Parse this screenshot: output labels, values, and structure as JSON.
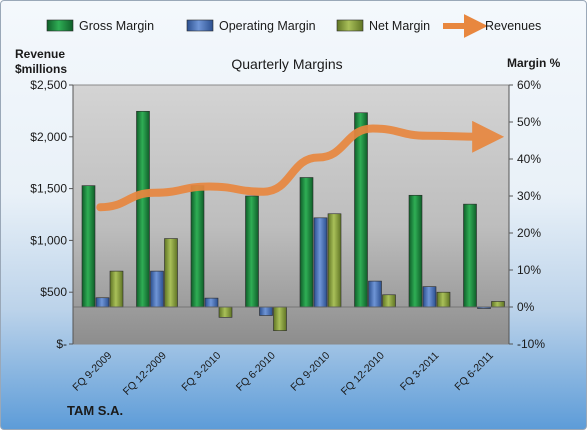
{
  "chart_data": {
    "type": "bar",
    "title": "Quarterly Margins",
    "categories": [
      "FQ 9-2009",
      "FQ 12-2009",
      "FQ 3-2010",
      "FQ 6-2010",
      "FQ 9-2010",
      "FQ 12-2010",
      "FQ 3-2011",
      "FQ 6-2011"
    ],
    "series": [
      {
        "name": "Gross Margin",
        "axis": "right",
        "kind": "bar",
        "color": "#1e8a3e",
        "values": [
          32.8,
          52.9,
          32.8,
          30.0,
          35.0,
          52.5,
          30.2,
          27.8
        ]
      },
      {
        "name": "Operating Margin",
        "axis": "right",
        "kind": "bar",
        "color": "#4a72b8",
        "values": [
          2.5,
          9.7,
          2.4,
          -2.3,
          24.1,
          7.0,
          5.5,
          -0.1
        ]
      },
      {
        "name": "Net Margin",
        "axis": "right",
        "kind": "bar",
        "color": "#8ea641",
        "values": [
          9.7,
          18.5,
          -2.8,
          -6.4,
          25.2,
          3.3,
          4.0,
          1.5
        ]
      },
      {
        "name": "Revenues",
        "axis": "left",
        "kind": "line",
        "color": "#e8873f",
        "values": [
          1320,
          1460,
          1520,
          1470,
          1800,
          2080,
          2010,
          2000
        ]
      }
    ],
    "left_axis": {
      "label_line1": "Revenue",
      "label_line2": "$millions",
      "ylim": [
        0,
        2500
      ],
      "ticks": [
        "$-",
        "$500",
        "$1,000",
        "$1,500",
        "$2,000",
        "$2,500"
      ]
    },
    "right_axis": {
      "label": "Margin %",
      "ylim": [
        -10,
        60
      ],
      "ticks": [
        "-10%",
        "0%",
        "10%",
        "20%",
        "30%",
        "40%",
        "50%",
        "60%"
      ]
    },
    "legend_position": "top",
    "grid": false
  },
  "footer": {
    "company": "TAM S.A."
  }
}
